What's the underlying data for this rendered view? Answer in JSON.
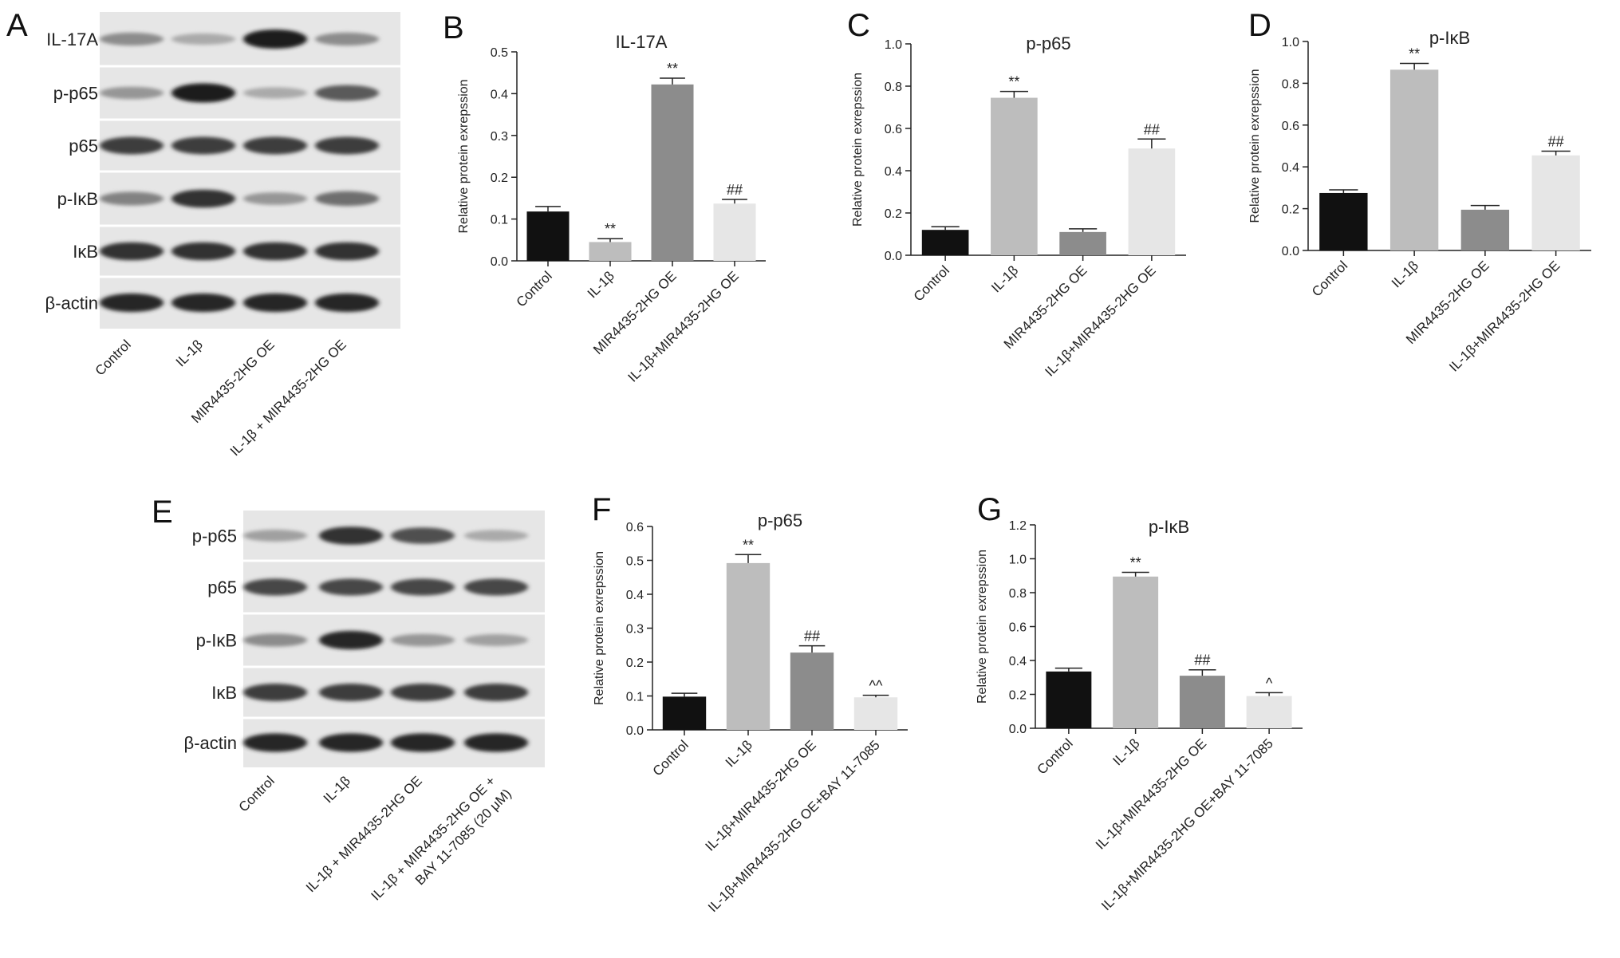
{
  "figure": {
    "panel_letters": {
      "A": "A",
      "B": "B",
      "C": "C",
      "D": "D",
      "E": "E",
      "F": "F",
      "G": "G"
    },
    "palette": {
      "control": "#111111",
      "il1b": "#bdbdbd",
      "oe": "#8c8c8c",
      "combo": "#e6e6e6"
    },
    "blot_A": {
      "rows": [
        {
          "label": "IL-17A",
          "intensity": [
            0.45,
            0.3,
            1.0,
            0.45
          ]
        },
        {
          "label": "p-p65",
          "intensity": [
            0.4,
            1.0,
            0.3,
            0.7
          ]
        },
        {
          "label": "p65",
          "intensity": [
            0.85,
            0.85,
            0.85,
            0.85
          ]
        },
        {
          "label": "p-IκB",
          "intensity": [
            0.5,
            0.9,
            0.4,
            0.6
          ]
        },
        {
          "label": "IκB",
          "intensity": [
            0.9,
            0.9,
            0.9,
            0.9
          ]
        },
        {
          "label": "β-actin",
          "intensity": [
            0.95,
            0.95,
            0.95,
            0.95
          ]
        }
      ],
      "lanes": [
        "Control",
        "IL-1β",
        "MIR4435-2HG OE",
        "IL-1β + MIR4435-2HG OE"
      ]
    },
    "blot_E": {
      "rows": [
        {
          "label": "p-p65",
          "intensity": [
            0.35,
            0.9,
            0.75,
            0.3
          ]
        },
        {
          "label": "p65",
          "intensity": [
            0.8,
            0.8,
            0.8,
            0.8
          ]
        },
        {
          "label": "p-IκB",
          "intensity": [
            0.45,
            0.95,
            0.4,
            0.35
          ]
        },
        {
          "label": "IκB",
          "intensity": [
            0.85,
            0.85,
            0.85,
            0.85
          ]
        },
        {
          "label": "β-actin",
          "intensity": [
            0.95,
            0.95,
            0.95,
            0.95
          ]
        }
      ],
      "lanes": [
        "Control",
        "IL-1β",
        "IL-1β + MIR4435-2HG OE",
        "IL-1β + MIR4435-2HG OE +",
        "BAY 11-7085 (20 μM)"
      ]
    }
  },
  "chart_data": [
    {
      "id": "B",
      "type": "bar",
      "title": "IL-17A",
      "ylabel": "Relative protein exrepssion",
      "xlabel": "",
      "ylim": [
        0,
        0.5
      ],
      "yticks": [
        "0.0",
        "0.1",
        "0.2",
        "0.3",
        "0.4",
        "0.5"
      ],
      "categories": [
        "Control",
        "IL-1β",
        "MIR4435-2HG OE",
        "IL-1β+MIR4435-2HG OE"
      ],
      "values": [
        0.118,
        0.045,
        0.422,
        0.137
      ],
      "errors": [
        0.012,
        0.008,
        0.015,
        0.01
      ],
      "annotations": [
        "",
        "**",
        "**",
        "##"
      ]
    },
    {
      "id": "C",
      "type": "bar",
      "title": "p-p65",
      "ylabel": "Relative protein exrepssion",
      "xlabel": "",
      "ylim": [
        0,
        1.0
      ],
      "yticks": [
        "0.0",
        "0.2",
        "0.4",
        "0.6",
        "0.8",
        "1.0"
      ],
      "categories": [
        "Control",
        "IL-1β",
        "MIR4435-2HG OE",
        "IL-1β+MIR4435-2HG OE"
      ],
      "values": [
        0.12,
        0.745,
        0.11,
        0.505
      ],
      "errors": [
        0.015,
        0.03,
        0.015,
        0.045
      ],
      "annotations": [
        "",
        "**",
        "",
        "##"
      ]
    },
    {
      "id": "D",
      "type": "bar",
      "title": "p-IκB",
      "ylabel": "Relative protein exrepssion",
      "xlabel": "",
      "ylim": [
        0,
        1.0
      ],
      "yticks": [
        "0.0",
        "0.2",
        "0.4",
        "0.6",
        "0.8",
        "1.0"
      ],
      "categories": [
        "Control",
        "IL-1β",
        "MIR4435-2HG OE",
        "IL-1β+MIR4435-2HG OE"
      ],
      "values": [
        0.275,
        0.865,
        0.195,
        0.455
      ],
      "errors": [
        0.015,
        0.03,
        0.02,
        0.02
      ],
      "annotations": [
        "",
        "**",
        "",
        "##"
      ]
    },
    {
      "id": "F",
      "type": "bar",
      "title": "p-p65",
      "ylabel": "Relative protein exrepssion",
      "xlabel": "",
      "ylim": [
        0,
        0.6
      ],
      "yticks": [
        "0.0",
        "0.1",
        "0.2",
        "0.3",
        "0.4",
        "0.5",
        "0.6"
      ],
      "categories": [
        "Control",
        "IL-1β",
        "IL-1β+MIR4435-2HG OE",
        "IL-1β+MIR4435-2HG OE+BAY 11-7085"
      ],
      "values": [
        0.098,
        0.492,
        0.228,
        0.096
      ],
      "errors": [
        0.01,
        0.025,
        0.02,
        0.006
      ],
      "annotations": [
        "",
        "**",
        "##",
        "^^"
      ]
    },
    {
      "id": "G",
      "type": "bar",
      "title": "p-IκB",
      "ylabel": "Relative protein exrepssion",
      "xlabel": "",
      "ylim": [
        0,
        1.2
      ],
      "yticks": [
        "0.0",
        "0.2",
        "0.4",
        "0.6",
        "0.8",
        "1.0",
        "1.2"
      ],
      "categories": [
        "Control",
        "IL-1β",
        "IL-1β+MIR4435-2HG OE",
        "IL-1β+MIR4435-2HG OE+BAY 11-7085"
      ],
      "values": [
        0.335,
        0.895,
        0.31,
        0.19
      ],
      "errors": [
        0.02,
        0.025,
        0.035,
        0.02
      ],
      "annotations": [
        "",
        "**",
        "##",
        "^"
      ]
    }
  ]
}
